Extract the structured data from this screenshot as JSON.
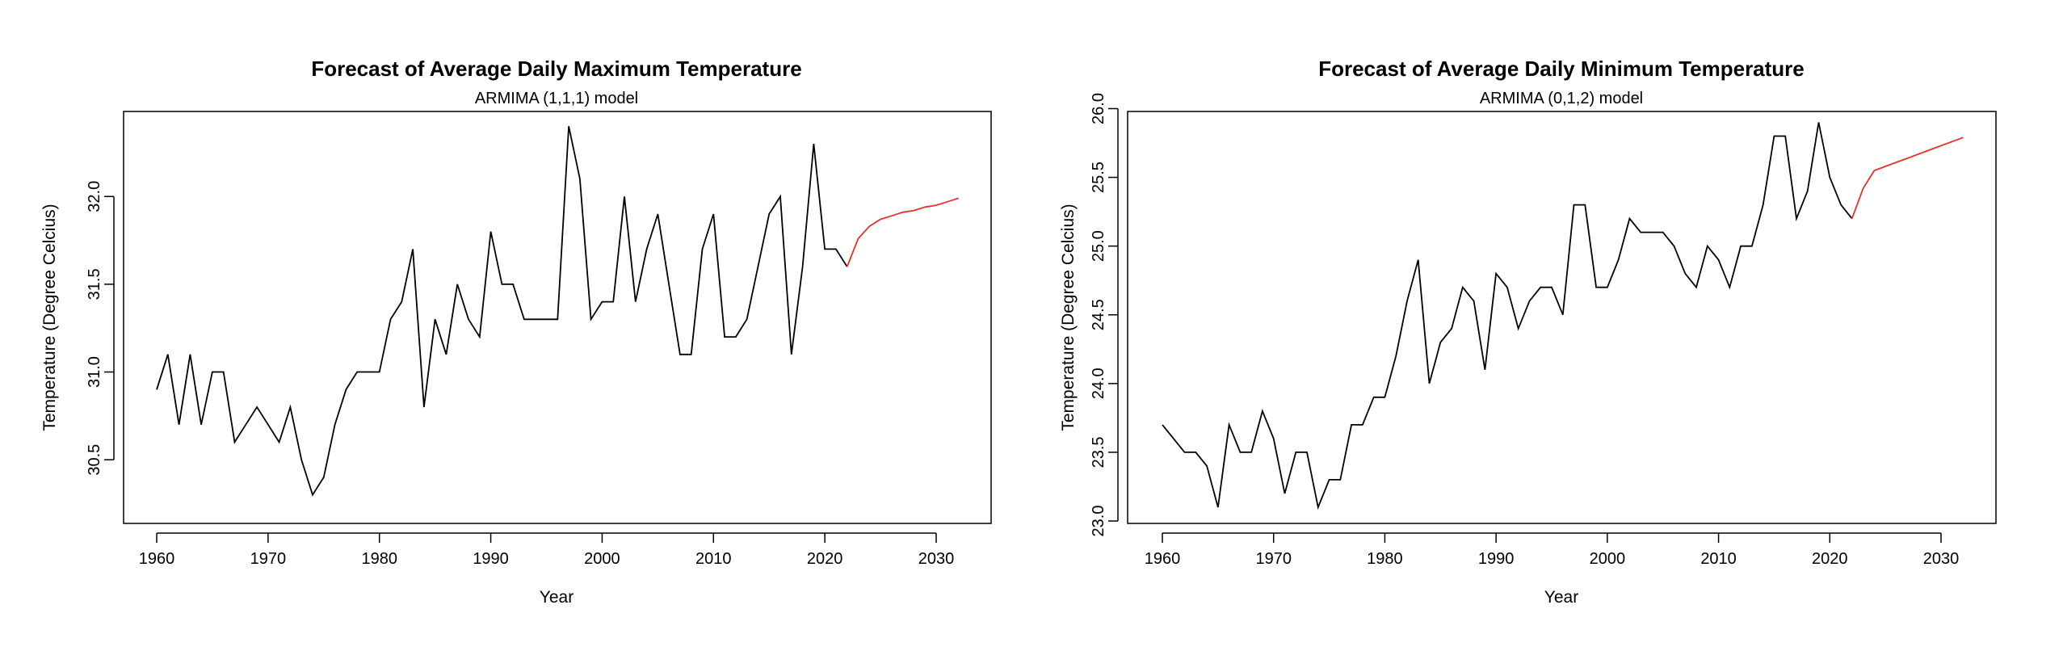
{
  "chart_data": [
    {
      "type": "line",
      "title": "Forecast of Average Daily Maximum Temperature",
      "subtitle": "ARMIMA (1,1,1) model",
      "xlabel": "Year",
      "ylabel": "Temperature (Degree Celcius)",
      "xlim": [
        1957,
        2037
      ],
      "ylim": [
        30.22,
        32.42
      ],
      "xticks": [
        1960,
        1970,
        1980,
        1990,
        2000,
        2010,
        2020,
        2030
      ],
      "yticks": [
        30.5,
        31.0,
        31.5,
        32.0
      ],
      "ytick_labels": [
        "30.5",
        "31.0",
        "31.5",
        "32.0"
      ],
      "series": [
        {
          "role": "observed",
          "color": "#000000",
          "x": [
            1960,
            1961,
            1962,
            1963,
            1964,
            1965,
            1966,
            1967,
            1968,
            1969,
            1970,
            1971,
            1972,
            1973,
            1974,
            1975,
            1976,
            1977,
            1978,
            1979,
            1980,
            1981,
            1982,
            1983,
            1984,
            1985,
            1986,
            1987,
            1988,
            1989,
            1990,
            1991,
            1992,
            1993,
            1994,
            1995,
            1996,
            1997,
            1998,
            1999,
            2000,
            2001,
            2002,
            2003,
            2004,
            2005,
            2006,
            2007,
            2008,
            2009,
            2010,
            2011,
            2012,
            2013,
            2014,
            2015,
            2016,
            2017,
            2018,
            2019,
            2020,
            2021,
            2022
          ],
          "y": [
            30.9,
            31.1,
            30.7,
            31.1,
            30.7,
            31.0,
            31.0,
            30.6,
            30.7,
            30.8,
            30.7,
            30.6,
            30.8,
            30.5,
            30.3,
            30.4,
            30.7,
            30.9,
            31.0,
            31.0,
            31.0,
            31.3,
            31.4,
            31.7,
            30.8,
            31.3,
            31.1,
            31.5,
            31.3,
            31.2,
            31.8,
            31.5,
            31.5,
            31.3,
            31.3,
            31.3,
            31.3,
            32.4,
            32.1,
            31.3,
            31.4,
            31.4,
            32.0,
            31.4,
            31.7,
            31.9,
            31.5,
            31.1,
            31.1,
            31.7,
            31.9,
            31.2,
            31.2,
            31.3,
            31.6,
            31.9,
            32.0,
            31.1,
            31.6,
            32.3,
            31.7,
            31.7,
            31.6
          ]
        },
        {
          "role": "forecast",
          "color": "#e8302a",
          "x": [
            2022,
            2023,
            2024,
            2025,
            2026,
            2027,
            2028,
            2029,
            2030,
            2031,
            2032
          ],
          "y": [
            31.6,
            31.76,
            31.83,
            31.87,
            31.89,
            31.91,
            31.92,
            31.94,
            31.95,
            31.97,
            31.99
          ]
        }
      ]
    },
    {
      "type": "line",
      "title": "Forecast of Average Daily Minimum Temperature",
      "subtitle": "ARMIMA (0,1,2) model",
      "xlabel": "Year",
      "ylabel": "Temperature (Degree Celcius)",
      "xlim": [
        1957,
        2037
      ],
      "ylim": [
        23.0,
        25.95
      ],
      "xticks": [
        1960,
        1970,
        1980,
        1990,
        2000,
        2010,
        2020,
        2030
      ],
      "yticks": [
        23.0,
        23.5,
        24.0,
        24.5,
        25.0,
        25.5,
        26.0
      ],
      "ytick_labels": [
        "23.0",
        "23.5",
        "24.0",
        "24.5",
        "25.0",
        "25.5",
        "26.0"
      ],
      "series": [
        {
          "role": "observed",
          "color": "#000000",
          "x": [
            1960,
            1961,
            1962,
            1963,
            1964,
            1965,
            1966,
            1967,
            1968,
            1969,
            1970,
            1971,
            1972,
            1973,
            1974,
            1975,
            1976,
            1977,
            1978,
            1979,
            1980,
            1981,
            1982,
            1983,
            1984,
            1985,
            1986,
            1987,
            1988,
            1989,
            1990,
            1991,
            1992,
            1993,
            1994,
            1995,
            1996,
            1997,
            1998,
            1999,
            2000,
            2001,
            2002,
            2003,
            2004,
            2005,
            2006,
            2007,
            2008,
            2009,
            2010,
            2011,
            2012,
            2013,
            2014,
            2015,
            2016,
            2017,
            2018,
            2019,
            2020,
            2021,
            2022
          ],
          "y": [
            23.7,
            23.6,
            23.5,
            23.5,
            23.4,
            23.1,
            23.7,
            23.5,
            23.5,
            23.8,
            23.6,
            23.2,
            23.5,
            23.5,
            23.1,
            23.3,
            23.3,
            23.7,
            23.7,
            23.9,
            23.9,
            24.2,
            24.6,
            24.9,
            24.0,
            24.3,
            24.4,
            24.7,
            24.6,
            24.1,
            24.8,
            24.7,
            24.4,
            24.6,
            24.7,
            24.7,
            24.5,
            25.3,
            25.3,
            24.7,
            24.7,
            24.9,
            25.2,
            25.1,
            25.1,
            25.1,
            25.0,
            24.8,
            24.7,
            25.0,
            24.9,
            24.7,
            25.0,
            25.0,
            25.3,
            25.8,
            25.8,
            25.2,
            25.4,
            25.9,
            25.5,
            25.3,
            25.2
          ]
        },
        {
          "role": "forecast",
          "color": "#e8302a",
          "x": [
            2022,
            2023,
            2024,
            2025,
            2026,
            2027,
            2028,
            2029,
            2030,
            2031,
            2032
          ],
          "y": [
            25.2,
            25.42,
            25.55,
            25.58,
            25.61,
            25.64,
            25.67,
            25.7,
            25.73,
            25.76,
            25.79
          ]
        }
      ]
    }
  ]
}
